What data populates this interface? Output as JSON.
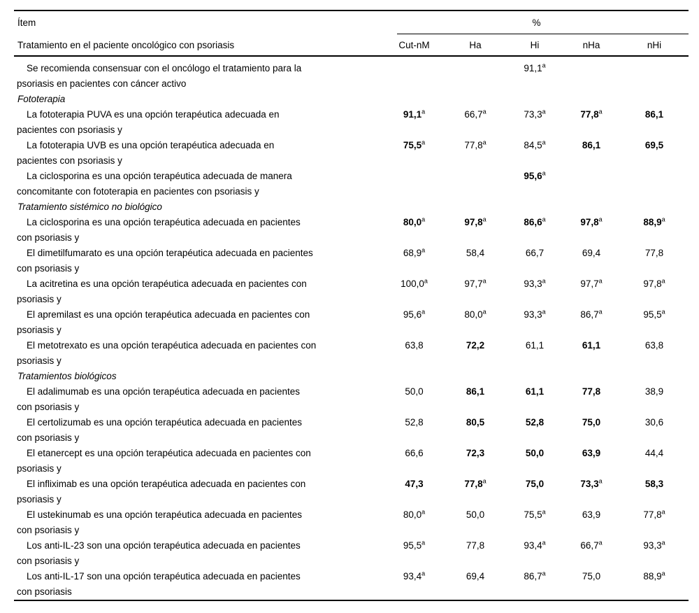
{
  "table": {
    "item_header": "Ítem",
    "item_subheader": "Tratamiento en el paciente oncológico con psoriasis",
    "percent_header": "%",
    "columns": [
      "Cut-nM",
      "Ha",
      "Hi",
      "nHa",
      "nHi"
    ],
    "text_color": "#000000",
    "background_color": "#ffffff",
    "rows": [
      {
        "type": "item",
        "lines": [
          "Se recomienda consensuar con el oncólogo el tratamiento para la",
          "psoriasis en pacientes con cáncer activo"
        ],
        "values": [
          null,
          null,
          {
            "v": "91,1",
            "sup": "a"
          },
          null,
          null
        ]
      },
      {
        "type": "section",
        "lines": [
          "Fototerapia"
        ]
      },
      {
        "type": "item",
        "lines": [
          "La fototerapia PUVA es una opción terapéutica adecuada en",
          "pacientes con psoriasis y"
        ],
        "values": [
          {
            "v": "91,1",
            "sup": "a",
            "bold": true
          },
          {
            "v": "66,7",
            "sup": "a"
          },
          {
            "v": "73,3",
            "sup": "a"
          },
          {
            "v": "77,8",
            "sup": "a",
            "bold": true
          },
          {
            "v": "86,1",
            "bold": true
          }
        ]
      },
      {
        "type": "item",
        "lines": [
          "La fototerapia UVB es una opción terapéutica adecuada en",
          "pacientes con psoriasis y"
        ],
        "values": [
          {
            "v": "75,5",
            "sup": "a",
            "bold": true
          },
          {
            "v": "77,8",
            "sup": "a"
          },
          {
            "v": "84,5",
            "sup": "a"
          },
          {
            "v": "86,1",
            "bold": true
          },
          {
            "v": "69,5",
            "bold": true
          }
        ]
      },
      {
        "type": "item",
        "lines": [
          "La ciclosporina es una opción terapéutica adecuada de manera",
          "concomitante con fototerapia en pacientes con psoriasis y"
        ],
        "values": [
          null,
          null,
          {
            "v": "95,6",
            "sup": "a",
            "bold": true
          },
          null,
          null
        ]
      },
      {
        "type": "section",
        "lines": [
          "Tratamiento sistémico no biológico"
        ]
      },
      {
        "type": "item",
        "lines": [
          "La ciclosporina es una opción terapéutica adecuada en pacientes",
          "con psoriasis y"
        ],
        "values": [
          {
            "v": "80,0",
            "sup": "a",
            "bold": true
          },
          {
            "v": "97,8",
            "sup": "a",
            "bold": true
          },
          {
            "v": "86,6",
            "sup": "a",
            "bold": true
          },
          {
            "v": "97,8",
            "sup": "a",
            "bold": true
          },
          {
            "v": "88,9",
            "sup": "a",
            "bold": true
          }
        ]
      },
      {
        "type": "item",
        "lines": [
          "El dimetilfumarato es una opción terapéutica adecuada en pacientes",
          "con psoriasis y"
        ],
        "values": [
          {
            "v": "68,9",
            "sup": "a"
          },
          {
            "v": "58,4"
          },
          {
            "v": "66,7"
          },
          {
            "v": "69,4"
          },
          {
            "v": "77,8"
          }
        ]
      },
      {
        "type": "item",
        "lines": [
          "La acitretina es una opción terapéutica adecuada en pacientes con",
          "psoriasis y"
        ],
        "values": [
          {
            "v": "100,0",
            "sup": "a"
          },
          {
            "v": "97,7",
            "sup": "a"
          },
          {
            "v": "93,3",
            "sup": "a"
          },
          {
            "v": "97,7",
            "sup": "a"
          },
          {
            "v": "97,8",
            "sup": "a"
          }
        ]
      },
      {
        "type": "item",
        "lines": [
          "El apremilast es una opción terapéutica adecuada en pacientes con",
          "psoriasis y"
        ],
        "values": [
          {
            "v": "95,6",
            "sup": "a"
          },
          {
            "v": "80,0",
            "sup": "a"
          },
          {
            "v": "93,3",
            "sup": "a"
          },
          {
            "v": "86,7",
            "sup": "a"
          },
          {
            "v": "95,5",
            "sup": "a"
          }
        ]
      },
      {
        "type": "item",
        "lines": [
          "El metotrexato es una opción terapéutica adecuada en pacientes con",
          "psoriasis y"
        ],
        "values": [
          {
            "v": "63,8"
          },
          {
            "v": "72,2",
            "bold": true
          },
          {
            "v": "61,1"
          },
          {
            "v": "61,1",
            "bold": true
          },
          {
            "v": "63,8"
          }
        ]
      },
      {
        "type": "section",
        "lines": [
          "Tratamientos biológicos"
        ]
      },
      {
        "type": "item",
        "lines": [
          "El adalimumab es una opción terapéutica adecuada en pacientes",
          "con psoriasis y"
        ],
        "values": [
          {
            "v": "50,0"
          },
          {
            "v": "86,1",
            "bold": true
          },
          {
            "v": "61,1",
            "bold": true
          },
          {
            "v": "77,8",
            "bold": true
          },
          {
            "v": "38,9"
          }
        ]
      },
      {
        "type": "item",
        "lines": [
          "El certolizumab es una opción terapéutica adecuada en pacientes",
          "con psoriasis y"
        ],
        "values": [
          {
            "v": "52,8"
          },
          {
            "v": "80,5",
            "bold": true
          },
          {
            "v": "52,8",
            "bold": true
          },
          {
            "v": "75,0",
            "bold": true
          },
          {
            "v": "30,6"
          }
        ]
      },
      {
        "type": "item",
        "lines": [
          "El etanercept es una opción terapéutica adecuada en pacientes con",
          "psoriasis y"
        ],
        "values": [
          {
            "v": "66,6"
          },
          {
            "v": "72,3",
            "bold": true
          },
          {
            "v": "50,0",
            "bold": true
          },
          {
            "v": "63,9",
            "bold": true
          },
          {
            "v": "44,4"
          }
        ]
      },
      {
        "type": "item",
        "lines": [
          "El infliximab es una opción terapéutica adecuada en pacientes con",
          "psoriasis y"
        ],
        "values": [
          {
            "v": "47,3",
            "bold": true
          },
          {
            "v": "77,8",
            "sup": "a",
            "bold": true
          },
          {
            "v": "75,0",
            "bold": true
          },
          {
            "v": "73,3",
            "sup": "a",
            "bold": true
          },
          {
            "v": "58,3",
            "bold": true
          }
        ]
      },
      {
        "type": "item",
        "lines": [
          "El ustekinumab es una opción terapéutica adecuada en pacientes",
          "con psoriasis y"
        ],
        "values": [
          {
            "v": "80,0",
            "sup": "a"
          },
          {
            "v": "50,0"
          },
          {
            "v": "75,5",
            "sup": "a"
          },
          {
            "v": "63,9"
          },
          {
            "v": "77,8",
            "sup": "a"
          }
        ]
      },
      {
        "type": "item",
        "lines": [
          "Los anti-IL-23 son una opción terapéutica adecuada en pacientes",
          "con psoriasis y"
        ],
        "values": [
          {
            "v": "95,5",
            "sup": "a"
          },
          {
            "v": "77,8"
          },
          {
            "v": "93,4",
            "sup": "a"
          },
          {
            "v": "66,7",
            "sup": "a"
          },
          {
            "v": "93,3",
            "sup": "a"
          }
        ]
      },
      {
        "type": "item",
        "lines": [
          "Los anti-IL-17 son una opción terapéutica adecuada en pacientes",
          "con psoriasis"
        ],
        "values": [
          {
            "v": "93,4",
            "sup": "a"
          },
          {
            "v": "69,4"
          },
          {
            "v": "86,7",
            "sup": "a"
          },
          {
            "v": "75,0"
          },
          {
            "v": "88,9",
            "sup": "a"
          }
        ]
      }
    ]
  }
}
